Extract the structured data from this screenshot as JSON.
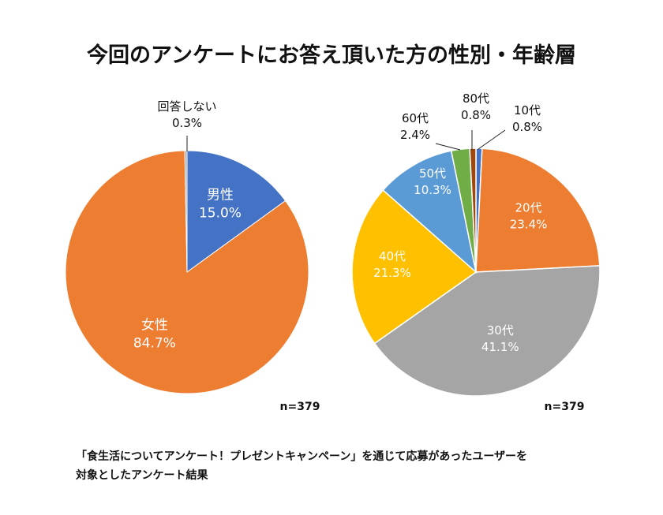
{
  "title": "今回のアンケートにお答え頂いた方の性別・年齢層",
  "footnote": [
    "「食生活についてアンケート！プレゼントキャンペーン」を通じて応募があったユーザーを",
    "対象としたアンケート結果"
  ],
  "chart_data": [
    {
      "type": "pie",
      "title": "",
      "n_label": "n=379",
      "start": "12 o'clock, clockwise",
      "slices": [
        {
          "label": "男性",
          "value": 15.0,
          "value_label": "15.0%",
          "color": "#4472C4"
        },
        {
          "label": "女性",
          "value": 84.7,
          "value_label": "84.7%",
          "color": "#ED7D31"
        },
        {
          "label": "回答しない",
          "value": 0.3,
          "value_label": "0.3%",
          "color": "#A5A5A5"
        }
      ]
    },
    {
      "type": "pie",
      "title": "",
      "n_label": "n=379",
      "start": "12 o'clock, clockwise",
      "slices": [
        {
          "label": "10代",
          "value": 0.8,
          "value_label": "0.8%",
          "color": "#4472C4"
        },
        {
          "label": "20代",
          "value": 23.4,
          "value_label": "23.4%",
          "color": "#ED7D31"
        },
        {
          "label": "30代",
          "value": 41.1,
          "value_label": "41.1%",
          "color": "#A5A5A5"
        },
        {
          "label": "40代",
          "value": 21.3,
          "value_label": "21.3%",
          "color": "#FFC000"
        },
        {
          "label": "50代",
          "value": 10.3,
          "value_label": "10.3%",
          "color": "#5B9BD5"
        },
        {
          "label": "60代",
          "value": 2.4,
          "value_label": "2.4%",
          "color": "#70AD47"
        },
        {
          "label": "80代",
          "value": 0.8,
          "value_label": "0.8%",
          "color": "#9E480E"
        }
      ]
    }
  ]
}
